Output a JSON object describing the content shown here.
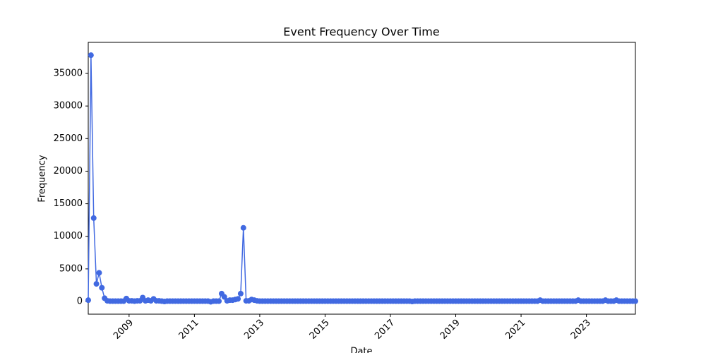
{
  "chart_data": {
    "type": "line",
    "title": "Event Frequency Over Time",
    "x_label": "Date",
    "y_label": "Frequency",
    "x": [
      "2007-10",
      "2007-11",
      "2007-12",
      "2008-01",
      "2008-02",
      "2008-03",
      "2008-04",
      "2008-05",
      "2008-06",
      "2008-07",
      "2008-08",
      "2008-09",
      "2008-10",
      "2008-11",
      "2008-12",
      "2009-01",
      "2009-02",
      "2009-03",
      "2009-04",
      "2009-05",
      "2009-06",
      "2009-07",
      "2009-08",
      "2009-09",
      "2009-10",
      "2009-11",
      "2009-12",
      "2010-01",
      "2010-02",
      "2010-03",
      "2010-04",
      "2010-05",
      "2010-06",
      "2010-07",
      "2010-08",
      "2010-09",
      "2010-10",
      "2010-11",
      "2010-12",
      "2011-01",
      "2011-02",
      "2011-03",
      "2011-04",
      "2011-05",
      "2011-06",
      "2011-07",
      "2011-08",
      "2011-09",
      "2011-10",
      "2011-11",
      "2011-12",
      "2012-01",
      "2012-02",
      "2012-03",
      "2012-04",
      "2012-05",
      "2012-06",
      "2012-07",
      "2012-08",
      "2012-09",
      "2012-10",
      "2012-11",
      "2012-12",
      "2013-01",
      "2013-02",
      "2013-03",
      "2013-04",
      "2013-05",
      "2013-06",
      "2013-07",
      "2013-08",
      "2013-09",
      "2013-10",
      "2013-11",
      "2013-12",
      "2014-01",
      "2014-02",
      "2014-03",
      "2014-04",
      "2014-05",
      "2014-06",
      "2014-07",
      "2014-08",
      "2014-09",
      "2014-10",
      "2014-11",
      "2014-12",
      "2015-01",
      "2015-02",
      "2015-03",
      "2015-04",
      "2015-05",
      "2015-06",
      "2015-07",
      "2015-08",
      "2015-09",
      "2015-10",
      "2015-11",
      "2015-12",
      "2016-01",
      "2016-02",
      "2016-03",
      "2016-04",
      "2016-05",
      "2016-06",
      "2016-07",
      "2016-08",
      "2016-09",
      "2016-10",
      "2016-11",
      "2016-12",
      "2017-01",
      "2017-02",
      "2017-03",
      "2017-04",
      "2017-05",
      "2017-06",
      "2017-07",
      "2017-08",
      "2017-09",
      "2017-10",
      "2017-11",
      "2017-12",
      "2018-01",
      "2018-02",
      "2018-03",
      "2018-04",
      "2018-05",
      "2018-06",
      "2018-07",
      "2018-08",
      "2018-09",
      "2018-10",
      "2018-11",
      "2018-12",
      "2019-01",
      "2019-02",
      "2019-03",
      "2019-04",
      "2019-05",
      "2019-06",
      "2019-07",
      "2019-08",
      "2019-09",
      "2019-10",
      "2019-11",
      "2019-12",
      "2020-01",
      "2020-02",
      "2020-03",
      "2020-04",
      "2020-05",
      "2020-06",
      "2020-07",
      "2020-08",
      "2020-09",
      "2020-10",
      "2020-11",
      "2020-12",
      "2021-01",
      "2021-02",
      "2021-03",
      "2021-04",
      "2021-05",
      "2021-06",
      "2021-07",
      "2021-08",
      "2021-09",
      "2021-10",
      "2021-11",
      "2021-12",
      "2022-01",
      "2022-02",
      "2022-03",
      "2022-04",
      "2022-05",
      "2022-06",
      "2022-07",
      "2022-08",
      "2022-09",
      "2022-10",
      "2022-11",
      "2022-12",
      "2023-01",
      "2023-02",
      "2023-03",
      "2023-04",
      "2023-05",
      "2023-06",
      "2023-07",
      "2023-08",
      "2023-09",
      "2023-10",
      "2023-11",
      "2023-12",
      "2024-01",
      "2024-02",
      "2024-03",
      "2024-04",
      "2024-05",
      "2024-06",
      "2024-07"
    ],
    "series": [
      {
        "name": "Frequency",
        "color": "#4169e1",
        "values": [
          200,
          37800,
          12800,
          2700,
          4400,
          2100,
          500,
          100,
          50,
          50,
          50,
          50,
          50,
          50,
          450,
          100,
          100,
          50,
          100,
          100,
          600,
          100,
          200,
          100,
          400,
          100,
          100,
          50,
          0,
          50,
          50,
          50,
          50,
          50,
          50,
          50,
          50,
          50,
          50,
          50,
          50,
          50,
          50,
          50,
          50,
          -50,
          50,
          50,
          50,
          1200,
          700,
          100,
          200,
          200,
          300,
          400,
          1200,
          11300,
          100,
          100,
          300,
          200,
          100,
          50,
          50,
          50,
          50,
          50,
          50,
          50,
          50,
          50,
          50,
          50,
          50,
          50,
          50,
          50,
          50,
          50,
          50,
          50,
          50,
          50,
          50,
          50,
          50,
          50,
          50,
          50,
          50,
          50,
          50,
          50,
          50,
          50,
          50,
          50,
          50,
          50,
          50,
          50,
          50,
          50,
          50,
          50,
          50,
          50,
          50,
          50,
          50,
          50,
          50,
          50,
          50,
          50,
          50,
          50,
          50,
          0,
          50,
          50,
          50,
          50,
          50,
          50,
          50,
          50,
          50,
          50,
          50,
          50,
          50,
          50,
          50,
          50,
          50,
          50,
          50,
          50,
          50,
          50,
          50,
          50,
          50,
          50,
          50,
          50,
          50,
          50,
          50,
          50,
          50,
          50,
          50,
          50,
          50,
          50,
          50,
          50,
          50,
          50,
          50,
          50,
          50,
          50,
          200,
          50,
          50,
          50,
          50,
          50,
          50,
          50,
          50,
          50,
          50,
          50,
          50,
          50,
          200,
          50,
          50,
          50,
          50,
          50,
          50,
          50,
          50,
          50,
          200,
          50,
          50,
          50,
          200,
          50,
          50,
          50,
          50,
          50,
          50,
          50
        ]
      }
    ],
    "xlim": [
      "2007-10",
      "2024-07"
    ],
    "xticks": [
      {
        "value": "2009-01",
        "label": "2009"
      },
      {
        "value": "2011-01",
        "label": "2011"
      },
      {
        "value": "2013-01",
        "label": "2013"
      },
      {
        "value": "2015-01",
        "label": "2015"
      },
      {
        "value": "2017-01",
        "label": "2017"
      },
      {
        "value": "2019-01",
        "label": "2019"
      },
      {
        "value": "2021-01",
        "label": "2021"
      },
      {
        "value": "2023-01",
        "label": "2023"
      }
    ],
    "ylim": [
      -1950,
      39770
    ],
    "yticks": [
      0,
      5000,
      10000,
      15000,
      20000,
      25000,
      30000,
      35000
    ],
    "grid": false
  }
}
